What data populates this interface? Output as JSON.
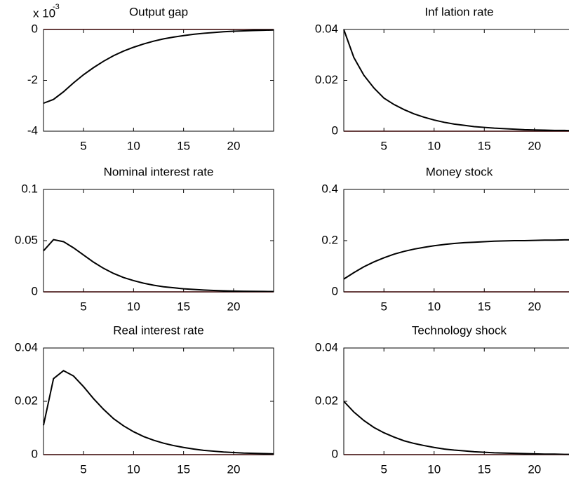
{
  "chart_data": [
    {
      "type": "line",
      "title": "Output gap",
      "y_multiplier": {
        "base": "x 10",
        "exponent": "-3"
      },
      "x": [
        1,
        2,
        3,
        4,
        5,
        6,
        7,
        8,
        9,
        10,
        11,
        12,
        13,
        14,
        15,
        16,
        17,
        18,
        19,
        20,
        21,
        22,
        23,
        24
      ],
      "values": [
        -2.9,
        -2.75,
        -2.45,
        -2.1,
        -1.78,
        -1.5,
        -1.25,
        -1.03,
        -0.85,
        -0.7,
        -0.57,
        -0.46,
        -0.37,
        -0.3,
        -0.24,
        -0.19,
        -0.15,
        -0.12,
        -0.09,
        -0.07,
        -0.055,
        -0.04,
        -0.03,
        -0.02
      ],
      "color": "#000000",
      "xlim": [
        1,
        24
      ],
      "xticks": [
        5,
        10,
        15,
        20
      ],
      "ylim": [
        -4,
        0
      ],
      "yticks": [
        -4,
        -2,
        0
      ],
      "reference_line": {
        "value": 0,
        "color": "#a00000"
      }
    },
    {
      "type": "line",
      "title": "Inf lation rate",
      "x": [
        1,
        2,
        3,
        4,
        5,
        6,
        7,
        8,
        9,
        10,
        11,
        12,
        13,
        14,
        15,
        16,
        17,
        18,
        19,
        20,
        21,
        22,
        23,
        24
      ],
      "values": [
        0.04,
        0.029,
        0.022,
        0.017,
        0.013,
        0.0105,
        0.0085,
        0.0068,
        0.0055,
        0.0044,
        0.0035,
        0.0028,
        0.0023,
        0.0018,
        0.0015,
        0.0012,
        0.001,
        0.0008,
        0.0006,
        0.0005,
        0.0004,
        0.0003,
        0.0003,
        0.0002
      ],
      "color": "#000000",
      "xlim": [
        1,
        24
      ],
      "xticks": [
        5,
        10,
        15,
        20
      ],
      "ylim": [
        0,
        0.04
      ],
      "yticks": [
        0,
        0.02,
        0.04
      ],
      "reference_line": {
        "value": 0,
        "color": "#a00000"
      }
    },
    {
      "type": "line",
      "title": "Nominal interest rate",
      "x": [
        1,
        2,
        3,
        4,
        5,
        6,
        7,
        8,
        9,
        10,
        11,
        12,
        13,
        14,
        15,
        16,
        17,
        18,
        19,
        20,
        21,
        22,
        23,
        24
      ],
      "values": [
        0.04,
        0.051,
        0.049,
        0.043,
        0.036,
        0.029,
        0.023,
        0.018,
        0.014,
        0.011,
        0.0085,
        0.0065,
        0.005,
        0.004,
        0.003,
        0.0024,
        0.0018,
        0.0014,
        0.001,
        0.0008,
        0.0006,
        0.0005,
        0.0004,
        0.0003
      ],
      "color": "#000000",
      "xlim": [
        1,
        24
      ],
      "xticks": [
        5,
        10,
        15,
        20
      ],
      "ylim": [
        0,
        0.1
      ],
      "yticks": [
        0,
        0.05,
        0.1
      ],
      "reference_line": {
        "value": 0,
        "color": "#a00000"
      }
    },
    {
      "type": "line",
      "title": "Money  stock",
      "x": [
        1,
        2,
        3,
        4,
        5,
        6,
        7,
        8,
        9,
        10,
        11,
        12,
        13,
        14,
        15,
        16,
        17,
        18,
        19,
        20,
        21,
        22,
        23,
        24
      ],
      "values": [
        0.05,
        0.075,
        0.098,
        0.117,
        0.133,
        0.147,
        0.158,
        0.167,
        0.174,
        0.18,
        0.185,
        0.189,
        0.192,
        0.194,
        0.196,
        0.198,
        0.199,
        0.2,
        0.2,
        0.201,
        0.202,
        0.202,
        0.203,
        0.203
      ],
      "color": "#000000",
      "xlim": [
        1,
        24
      ],
      "xticks": [
        5,
        10,
        15,
        20
      ],
      "ylim": [
        0,
        0.4
      ],
      "yticks": [
        0,
        0.2,
        0.4
      ],
      "reference_line": {
        "value": 0,
        "color": "#a00000"
      }
    },
    {
      "type": "line",
      "title": "Real interest rate",
      "x": [
        1,
        2,
        3,
        4,
        5,
        6,
        7,
        8,
        9,
        10,
        11,
        12,
        13,
        14,
        15,
        16,
        17,
        18,
        19,
        20,
        21,
        22,
        23,
        24
      ],
      "values": [
        0.011,
        0.0285,
        0.0315,
        0.0295,
        0.0255,
        0.021,
        0.017,
        0.0135,
        0.0108,
        0.0086,
        0.0068,
        0.0054,
        0.0043,
        0.0034,
        0.0027,
        0.0021,
        0.0016,
        0.0013,
        0.001,
        0.0008,
        0.0006,
        0.0005,
        0.0004,
        0.0003
      ],
      "color": "#000000",
      "xlim": [
        1,
        24
      ],
      "xticks": [
        5,
        10,
        15,
        20
      ],
      "ylim": [
        0,
        0.04
      ],
      "yticks": [
        0,
        0.02,
        0.04
      ],
      "reference_line": {
        "value": 0,
        "color": "#a00000"
      }
    },
    {
      "type": "line",
      "title": "Technology  shock",
      "x": [
        1,
        2,
        3,
        4,
        5,
        6,
        7,
        8,
        9,
        10,
        11,
        12,
        13,
        14,
        15,
        16,
        17,
        18,
        19,
        20,
        21,
        22,
        23,
        24
      ],
      "values": [
        0.02,
        0.016,
        0.0128,
        0.0102,
        0.0082,
        0.0066,
        0.0052,
        0.0042,
        0.0034,
        0.0027,
        0.0021,
        0.0017,
        0.0014,
        0.0011,
        0.0009,
        0.0007,
        0.0006,
        0.0005,
        0.0004,
        0.0003,
        0.0002,
        0.0002,
        0.0001,
        0.0001
      ],
      "color": "#000000",
      "xlim": [
        1,
        24
      ],
      "xticks": [
        5,
        10,
        15,
        20
      ],
      "ylim": [
        0,
        0.04
      ],
      "yticks": [
        0,
        0.02,
        0.04
      ],
      "reference_line": {
        "value": 0,
        "color": "#a00000"
      }
    }
  ]
}
